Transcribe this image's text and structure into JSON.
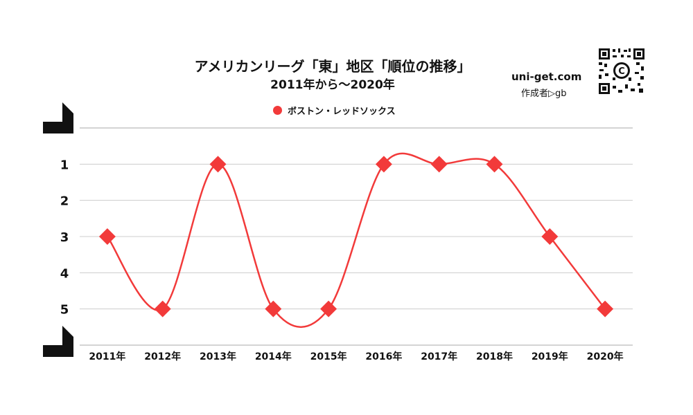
{
  "chart_data": {
    "type": "line",
    "title": "アメリカンリーグ「東」地区「順位の推移」",
    "subtitle": "2011年から～2020年",
    "categories": [
      "2011年",
      "2012年",
      "2013年",
      "2014年",
      "2015年",
      "2016年",
      "2017年",
      "2018年",
      "2019年",
      "2020年"
    ],
    "series": [
      {
        "name": "ボストン・レッドソックス",
        "values": [
          3,
          5,
          1,
          5,
          5,
          1,
          1,
          1,
          3,
          5
        ],
        "color": "#f23a3a"
      }
    ],
    "y_ticks": [
      "1",
      "2",
      "3",
      "4",
      "5"
    ],
    "ylim": [
      0,
      6
    ],
    "y_inverted": true,
    "grid": true,
    "legend_position": "top-center"
  },
  "brand": {
    "site": "uni-get.com",
    "author": "作成者▷gb",
    "logo_letter": "C"
  },
  "colors": {
    "series": "#f23a3a",
    "grid": "#cccccc",
    "text": "#111111"
  }
}
